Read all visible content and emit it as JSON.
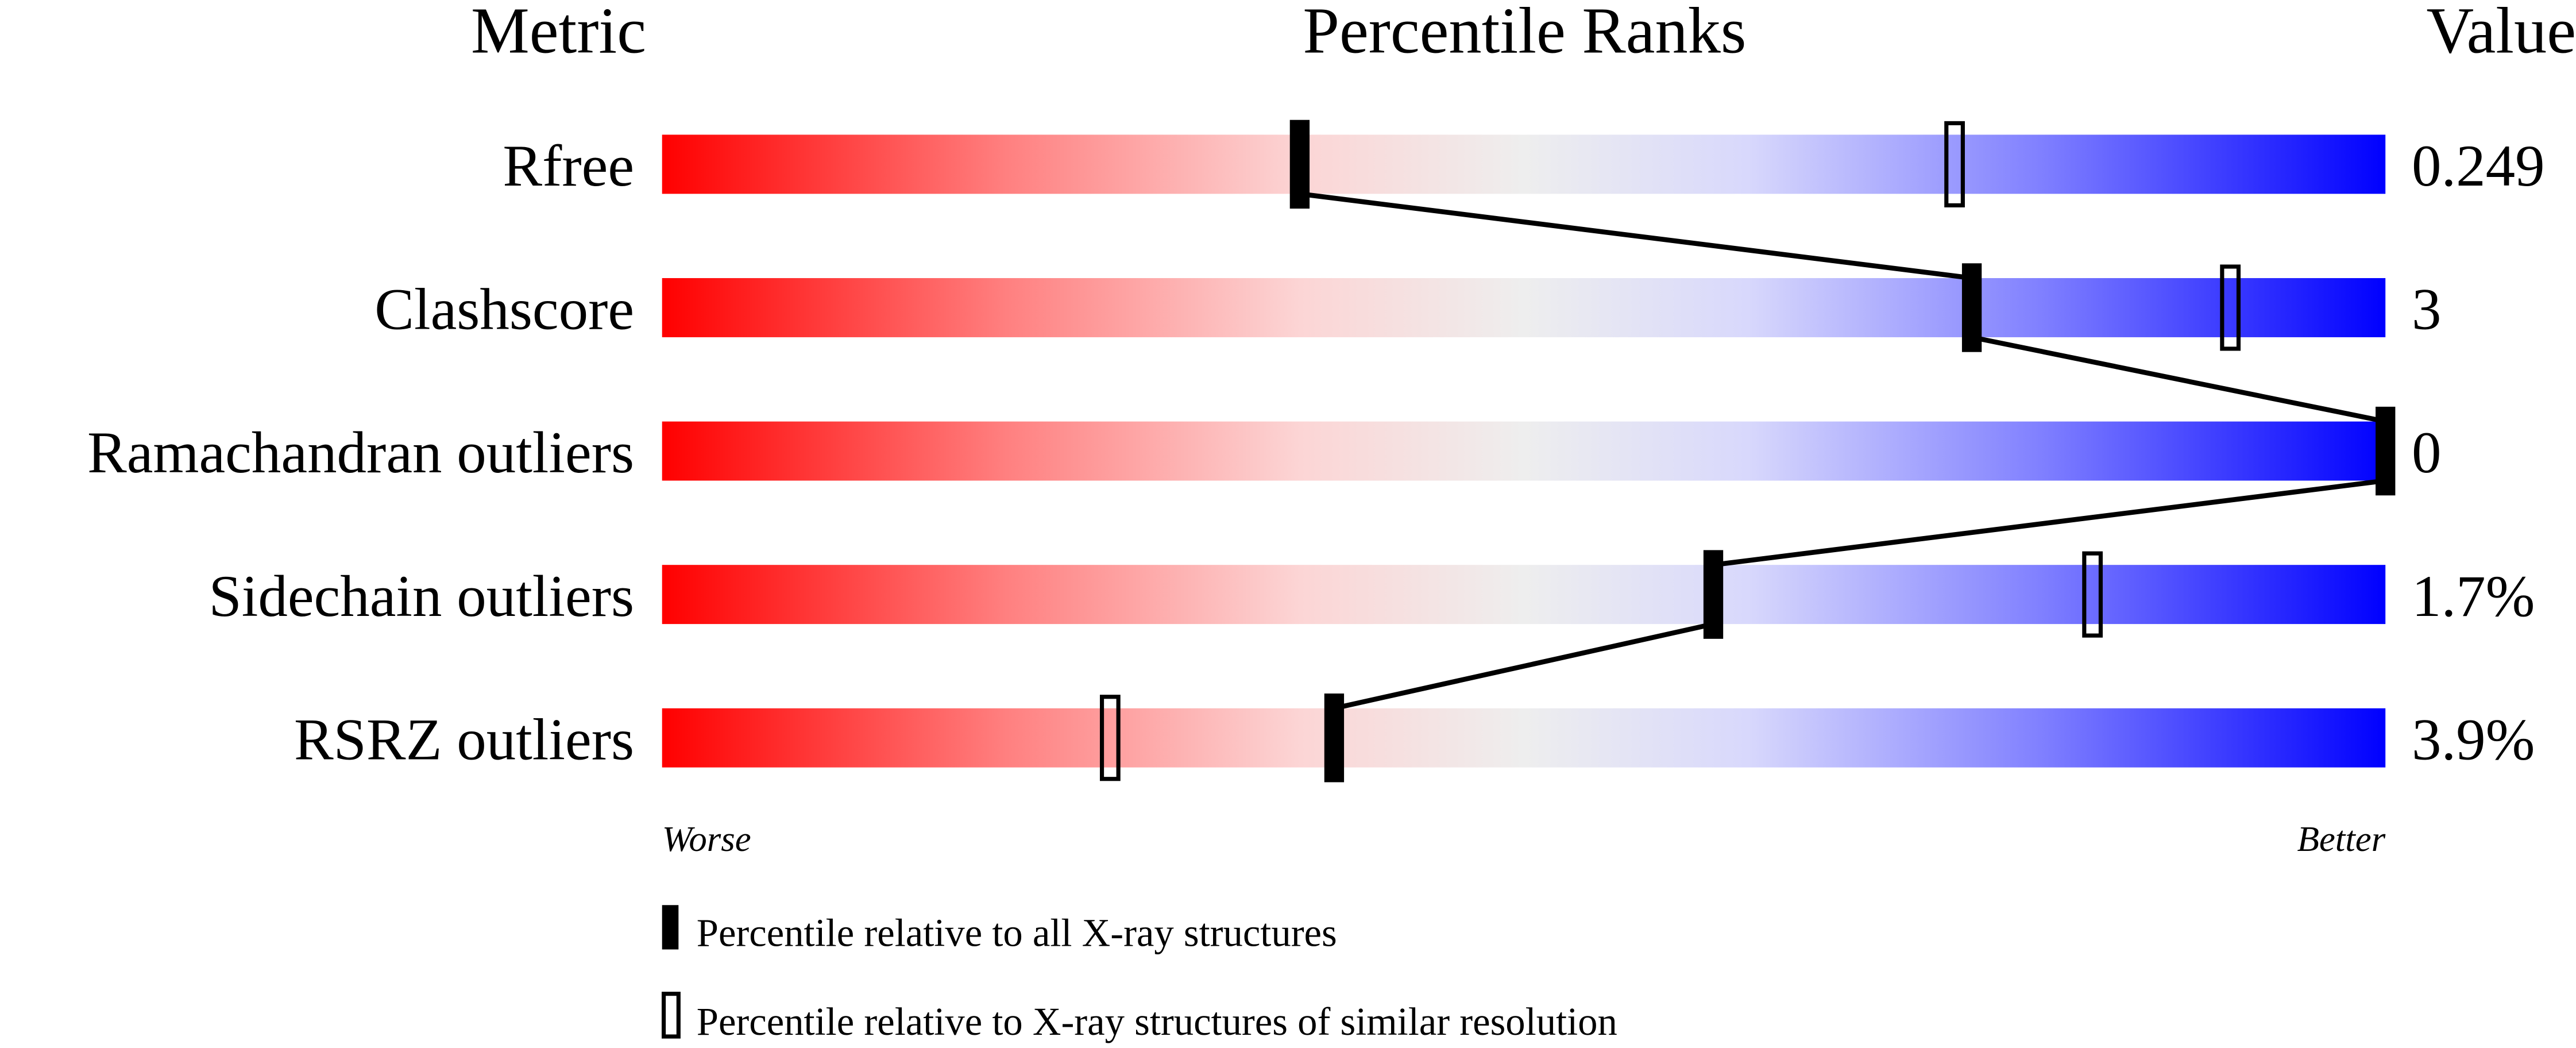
{
  "chart_data": {
    "type": "percentile-bar",
    "headers": {
      "metric": "Metric",
      "ranks": "Percentile Ranks",
      "value": "Value"
    },
    "xlim": [
      0,
      100
    ],
    "rows": [
      {
        "metric": "Rfree",
        "value": "0.249",
        "percentile_all": 37,
        "percentile_similar": 75
      },
      {
        "metric": "Clashscore",
        "value": "3",
        "percentile_all": 76,
        "percentile_similar": 91
      },
      {
        "metric": "Ramachandran outliers",
        "value": "0",
        "percentile_all": 100,
        "percentile_similar": null
      },
      {
        "metric": "Sidechain outliers",
        "value": "1.7%",
        "percentile_all": 61,
        "percentile_similar": 83
      },
      {
        "metric": "RSRZ outliers",
        "value": "3.9%",
        "percentile_all": 39,
        "percentile_similar": 26
      }
    ],
    "axis_labels": {
      "left": "Worse",
      "right": "Better"
    },
    "legend": {
      "filled": "Percentile relative to all X-ray structures",
      "open": "Percentile relative to X-ray structures of similar resolution"
    },
    "gradient_colors": [
      "#ff0000",
      "#eeeeee",
      "#0000ff"
    ]
  }
}
